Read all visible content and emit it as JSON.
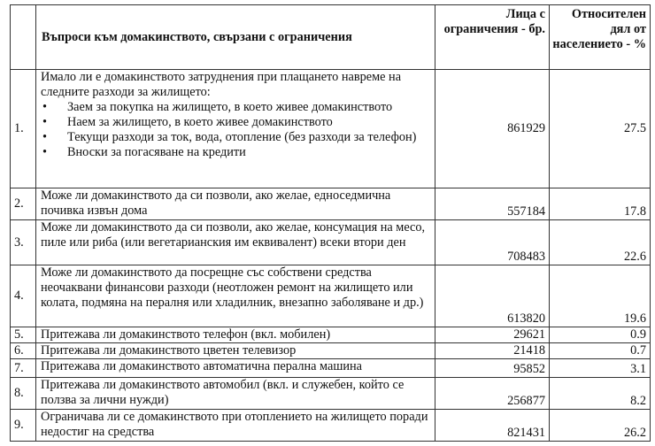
{
  "header": {
    "question": "Въпроси към домакинството, свързани с ограничения",
    "persons": "Лица с ограничения - бр.",
    "share": "Относителен дял от населението - %"
  },
  "rows": [
    {
      "no": "1.",
      "question": "Имало ли е домакинството затруднения при плащането навреме на следните разходи за жилището:",
      "bullets": [
        "Заем за покупка на жилището, в което живее домакинството",
        "Наем за жилището, в което живее домакинството",
        "Текущи разходи за ток, вода, отопление (без разходи за телефон)",
        "Вноски за погасяване на кредити"
      ],
      "persons": "861929",
      "share": "27.5"
    },
    {
      "no": "2.",
      "question": "Може ли домакинството да си позволи, ако желае, едноседмична почивка извън дома",
      "persons": "557184",
      "share": "17.8"
    },
    {
      "no": "3.",
      "question": "Може ли домакинството да си позволи, ако желае, консумация на месо, пиле или риба (или вегетарианския им еквивалент) всеки втори ден",
      "persons": "708483",
      "share": "22.6"
    },
    {
      "no": "4.",
      "question": "Може ли домакинството да посрещне със собствени средства неочаквани финансови разходи (неотложен ремонт на жилището или колата, подмяна на пералня или хладилник, внезапно заболяване и др.)",
      "persons": "613820",
      "share": "19.6"
    },
    {
      "no": "5.",
      "question": "Притежава ли домакинството телефон (вкл. мобилен)",
      "persons": "29621",
      "share": "0.9"
    },
    {
      "no": "6.",
      "question": "Притежава ли домакинството цветен телевизор",
      "persons": "21418",
      "share": "0.7"
    },
    {
      "no": "7.",
      "question": "Притежава ли домакинството автоматична перална машина",
      "persons": "95852",
      "share": "3.1"
    },
    {
      "no": "8.",
      "question": "Притежава ли домакинството автомобил (вкл. и служебен, който се ползва за лични нужди)",
      "persons": "256877",
      "share": "8.2"
    },
    {
      "no": "9.",
      "question": "Ограничава ли се домакинството при отоплението на жилището поради недостиг на средства",
      "persons": "821431",
      "share": "26.2"
    }
  ]
}
